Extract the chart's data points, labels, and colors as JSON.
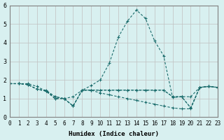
{
  "xlabel": "Humidex (Indice chaleur)",
  "bg_color": "#d8f0f0",
  "grid_color": "#c0c0c0",
  "line_color": "#1a6b6b",
  "xlim": [
    0,
    23
  ],
  "ylim": [
    0,
    6
  ],
  "xticks": [
    0,
    1,
    2,
    3,
    4,
    5,
    6,
    7,
    8,
    9,
    10,
    11,
    12,
    13,
    14,
    15,
    16,
    17,
    18,
    19,
    20,
    21,
    22,
    23
  ],
  "yticks": [
    0,
    1,
    2,
    3,
    4,
    5,
    6
  ],
  "series": [
    [
      1.8,
      1.8,
      1.8,
      1.65,
      1.4,
      1.0,
      1.0,
      1.1,
      1.45,
      1.45,
      1.45,
      1.45,
      1.45,
      1.45,
      1.45,
      1.45,
      1.45,
      1.45,
      1.1,
      1.1,
      0.5,
      1.6,
      1.65,
      1.6
    ],
    [
      1.8,
      1.8,
      1.75,
      1.5,
      1.4,
      1.0,
      1.0,
      0.6,
      1.45,
      1.7,
      2.0,
      2.9,
      4.3,
      5.15,
      5.75,
      5.3,
      4.1,
      3.3,
      1.05,
      1.1,
      1.1,
      1.6,
      1.65,
      1.6
    ],
    [
      1.8,
      1.8,
      1.75,
      1.5,
      1.4,
      1.1,
      1.0,
      0.6,
      1.45,
      1.45,
      1.45,
      1.45,
      1.45,
      1.45,
      1.45,
      1.45,
      1.45,
      1.45,
      1.1,
      1.1,
      0.5,
      1.6,
      1.65,
      1.6
    ],
    [
      1.8,
      1.8,
      1.75,
      1.5,
      1.45,
      1.1,
      1.0,
      0.6,
      1.45,
      1.45,
      1.3,
      1.2,
      1.1,
      1.0,
      0.9,
      0.8,
      0.7,
      0.6,
      0.5,
      0.45,
      0.45,
      1.6,
      1.65,
      1.6
    ]
  ]
}
